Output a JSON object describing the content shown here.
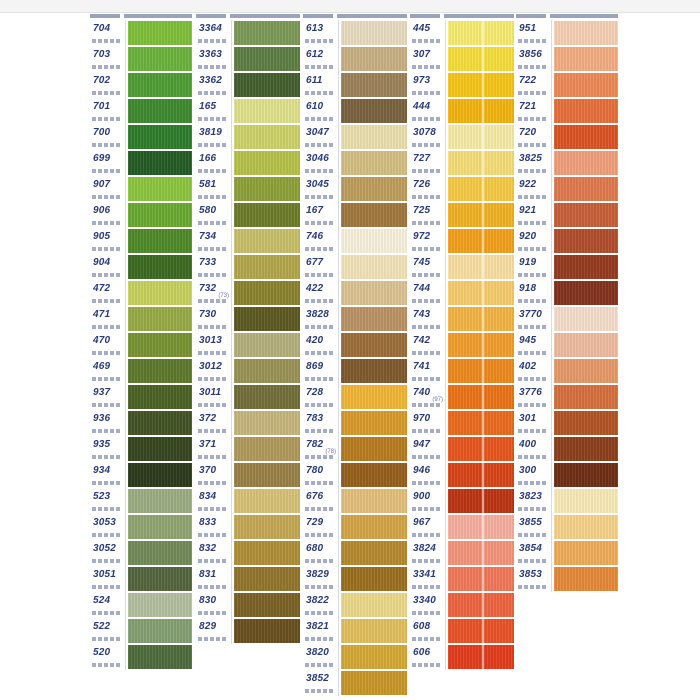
{
  "columns": [
    {
      "swatches": [
        {
          "code": "704",
          "color": "#7fbf3a"
        },
        {
          "code": "703",
          "color": "#6cb33c"
        },
        {
          "code": "702",
          "color": "#4f9d35"
        },
        {
          "code": "701",
          "color": "#3e8a2f"
        },
        {
          "code": "700",
          "color": "#2f7d2b"
        },
        {
          "code": "699",
          "color": "#245c25"
        },
        {
          "code": "907",
          "color": "#8dc63f"
        },
        {
          "code": "906",
          "color": "#6aab2f"
        },
        {
          "code": "905",
          "color": "#4f8a28"
        },
        {
          "code": "904",
          "color": "#3c6a22"
        },
        {
          "code": "472",
          "color": "#c7d25e"
        },
        {
          "code": "471",
          "color": "#97ab45"
        },
        {
          "code": "470",
          "color": "#789433"
        },
        {
          "code": "469",
          "color": "#5d7a2c"
        },
        {
          "code": "937",
          "color": "#4b6325"
        },
        {
          "code": "936",
          "color": "#425424"
        },
        {
          "code": "935",
          "color": "#36471f"
        },
        {
          "code": "934",
          "color": "#2c3a1a"
        },
        {
          "code": "523",
          "color": "#9cae84"
        },
        {
          "code": "3053",
          "color": "#8fa571"
        },
        {
          "code": "3052",
          "color": "#728a58"
        },
        {
          "code": "3051",
          "color": "#55663f"
        },
        {
          "code": "524",
          "color": "#b4c0a0"
        },
        {
          "code": "522",
          "color": "#85a073"
        },
        {
          "code": "520",
          "color": "#4e6c3d"
        }
      ]
    },
    {
      "swatches": [
        {
          "code": "3364",
          "color": "#7c9b58"
        },
        {
          "code": "3363",
          "color": "#5e7f44"
        },
        {
          "code": "3362",
          "color": "#44602f"
        },
        {
          "code": "165",
          "color": "#dfe28d"
        },
        {
          "code": "3819",
          "color": "#cdd36a"
        },
        {
          "code": "166",
          "color": "#b7c24a"
        },
        {
          "code": "581",
          "color": "#8fa13a"
        },
        {
          "code": "580",
          "color": "#6e7c2a"
        },
        {
          "code": "734",
          "color": "#c9c06a"
        },
        {
          "code": "733",
          "color": "#b3a74c"
        },
        {
          "code": "732",
          "color": "#8c8430",
          "note": "(73)"
        },
        {
          "code": "730",
          "color": "#5d5a22"
        },
        {
          "code": "3013",
          "color": "#b4b07c"
        },
        {
          "code": "3012",
          "color": "#9a9456"
        },
        {
          "code": "3011",
          "color": "#74703a"
        },
        {
          "code": "372",
          "color": "#c7b77d"
        },
        {
          "code": "371",
          "color": "#b09a5c"
        },
        {
          "code": "370",
          "color": "#9a8147"
        },
        {
          "code": "834",
          "color": "#d8c278"
        },
        {
          "code": "833",
          "color": "#c4a855"
        },
        {
          "code": "832",
          "color": "#b08f39"
        },
        {
          "code": "831",
          "color": "#92752d"
        },
        {
          "code": "830",
          "color": "#7b6226"
        },
        {
          "code": "829",
          "color": "#69501f"
        }
      ]
    },
    {
      "swatches": [
        {
          "code": "613",
          "color": "#e8dcc0"
        },
        {
          "code": "612",
          "color": "#c9b184"
        },
        {
          "code": "611",
          "color": "#9c825a"
        },
        {
          "code": "610",
          "color": "#7a6340"
        },
        {
          "code": "3047",
          "color": "#eadfae"
        },
        {
          "code": "3046",
          "color": "#d5c084"
        },
        {
          "code": "3045",
          "color": "#bf9e5e"
        },
        {
          "code": "167",
          "color": "#a0773e"
        },
        {
          "code": "746",
          "color": "#f8f1dc"
        },
        {
          "code": "677",
          "color": "#f2e4b8"
        },
        {
          "code": "422",
          "color": "#dcc394"
        },
        {
          "code": "3828",
          "color": "#bb9465"
        },
        {
          "code": "420",
          "color": "#9c6f3a"
        },
        {
          "code": "869",
          "color": "#7f5a2e"
        },
        {
          "code": "728",
          "color": "#f2b637"
        },
        {
          "code": "783",
          "color": "#d99a2c"
        },
        {
          "code": "782",
          "color": "#b87c22",
          "note": "(78)"
        },
        {
          "code": "780",
          "color": "#95601c"
        },
        {
          "code": "676",
          "color": "#e4c07c"
        },
        {
          "code": "729",
          "color": "#d5a447"
        },
        {
          "code": "680",
          "color": "#b68a2f"
        },
        {
          "code": "3829",
          "color": "#9c7120"
        },
        {
          "code": "3822",
          "color": "#ecd98a"
        },
        {
          "code": "3821",
          "color": "#e1c05e"
        },
        {
          "code": "3820",
          "color": "#d5a935"
        },
        {
          "code": "3852",
          "color": "#c89728"
        }
      ]
    },
    {
      "swatches": [
        {
          "code": "445",
          "color": "#f7ec72"
        },
        {
          "code": "307",
          "color": "#f6de3c"
        },
        {
          "code": "973",
          "color": "#f5c618"
        },
        {
          "code": "444",
          "color": "#f3b510"
        },
        {
          "code": "3078",
          "color": "#f8eba7"
        },
        {
          "code": "727",
          "color": "#f7de7a"
        },
        {
          "code": "726",
          "color": "#f5ca45"
        },
        {
          "code": "725",
          "color": "#f1b324"
        },
        {
          "code": "972",
          "color": "#f3a11c"
        },
        {
          "code": "745",
          "color": "#f8dfa2"
        },
        {
          "code": "744",
          "color": "#f6cc6e"
        },
        {
          "code": "743",
          "color": "#f3b446"
        },
        {
          "code": "742",
          "color": "#f19e2e"
        },
        {
          "code": "741",
          "color": "#ee8a20"
        },
        {
          "code": "740",
          "color": "#ec7418",
          "note": "(97)"
        },
        {
          "code": "970",
          "color": "#eb6b1f"
        },
        {
          "code": "947",
          "color": "#e8561e"
        },
        {
          "code": "946",
          "color": "#d84518"
        },
        {
          "code": "900",
          "color": "#bd3514"
        },
        {
          "code": "967",
          "color": "#f7b0a0"
        },
        {
          "code": "3824",
          "color": "#f5957c"
        },
        {
          "code": "3341",
          "color": "#f2785a"
        },
        {
          "code": "3340",
          "color": "#ee6540"
        },
        {
          "code": "608",
          "color": "#ea5328"
        },
        {
          "code": "606",
          "color": "#e33d1c"
        }
      ]
    },
    {
      "swatches": [
        {
          "code": "951",
          "color": "#f6d0b4"
        },
        {
          "code": "3856",
          "color": "#f3ae84"
        },
        {
          "code": "722",
          "color": "#ee8a58"
        },
        {
          "code": "721",
          "color": "#e8703c"
        },
        {
          "code": "720",
          "color": "#dc5424"
        },
        {
          "code": "3825",
          "color": "#f1a07c"
        },
        {
          "code": "922",
          "color": "#e0794e"
        },
        {
          "code": "921",
          "color": "#c8603a"
        },
        {
          "code": "920",
          "color": "#b24e2e"
        },
        {
          "code": "919",
          "color": "#963b22"
        },
        {
          "code": "918",
          "color": "#84331e"
        },
        {
          "code": "3770",
          "color": "#f5ddcc"
        },
        {
          "code": "945",
          "color": "#eebda0"
        },
        {
          "code": "402",
          "color": "#e79a6a"
        },
        {
          "code": "3776",
          "color": "#d6703e"
        },
        {
          "code": "301",
          "color": "#b35526"
        },
        {
          "code": "400",
          "color": "#8c3f1c"
        },
        {
          "code": "300",
          "color": "#6f2f14"
        },
        {
          "code": "3823",
          "color": "#f8eab8"
        },
        {
          "code": "3855",
          "color": "#f6d28a"
        },
        {
          "code": "3854",
          "color": "#efad5a"
        },
        {
          "code": "3853",
          "color": "#e68a3a"
        }
      ]
    }
  ]
}
